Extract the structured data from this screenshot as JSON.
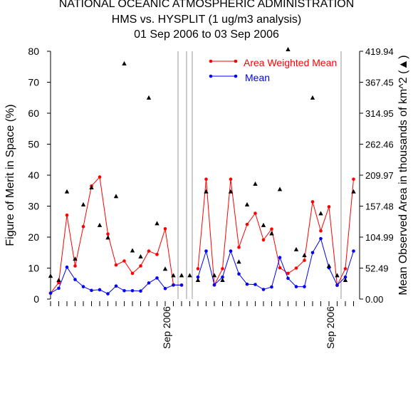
{
  "titles": {
    "line1": "NATIONAL OCEANIC ATMOSPHERIC ADMINISTRATION",
    "line2": "HMS vs. HYSPLIT (1 ug/m3 analysis)",
    "line3": "01 Sep 2006 to 03 Sep 2006"
  },
  "colors": {
    "awm": "#ff0000",
    "mean": "#0000ff",
    "area": "#000000",
    "axis": "#000000",
    "vline": "#999999"
  },
  "chart_data": {
    "type": "line",
    "ylabel_left": "Figure of Merit in Space (%)",
    "ylabel_right": "Mean Observed Area in thousands of km^2 (▲)",
    "ylim_left": [
      0,
      80
    ],
    "yticks_left": [
      "0",
      "10",
      "20",
      "30",
      "40",
      "50",
      "60",
      "70",
      "80"
    ],
    "ylim_right": [
      0,
      419.94
    ],
    "yticks_right": [
      "0.00",
      "52.49",
      "104.99",
      "157.48",
      "209.97",
      "262.46",
      "314.95",
      "367.45",
      "419.94"
    ],
    "xtick_labels": [
      "Sep 2006",
      "Sep 2006"
    ],
    "grid": false,
    "legend_position": "top-center",
    "series": [
      {
        "name": "Area Weighted Mean",
        "color": "#ff0000",
        "marker": "circle",
        "values": [
          1.9,
          5.3,
          27.1,
          10.7,
          23.4,
          36.5,
          39.4,
          21.0,
          11.0,
          12.3,
          8.3,
          10.7,
          15.5,
          14.4,
          22.7,
          4.6,
          4.5,
          null,
          9.8,
          38.7,
          4.5,
          9.8,
          38.7,
          16.7,
          24.1,
          27.7,
          19.1,
          22.6,
          10.1,
          8.3,
          10.0,
          12.5,
          31.4,
          22.0,
          29.8,
          4.4,
          9.8,
          38.7
        ]
      },
      {
        "name": "Mean",
        "color": "#0000ff",
        "marker": "circle",
        "values": [
          1.9,
          3.5,
          10.3,
          6.3,
          4.0,
          2.8,
          3.0,
          1.7,
          4.2,
          2.7,
          2.7,
          2.6,
          5.2,
          6.8,
          3.4,
          4.5,
          4.5,
          null,
          7.1,
          15.5,
          4.6,
          7.1,
          15.5,
          8.1,
          4.8,
          4.7,
          3.1,
          3.9,
          13.4,
          6.7,
          4.0,
          4.0,
          15.0,
          19.5,
          10.1,
          4.5,
          7.1,
          15.5
        ]
      },
      {
        "name": "Mean Observed Area",
        "color": "#000000",
        "marker": "triangle",
        "axis": "right",
        "values": [
          39.0,
          32.0,
          182.0,
          68.0,
          160.0,
          189.0,
          125.0,
          104.0,
          174.0,
          399.0,
          82.0,
          72.0,
          341.0,
          128.0,
          51.0,
          40.0,
          40.0,
          40.0,
          32.0,
          182.0,
          40.0,
          32.0,
          182.0,
          63.0,
          160.0,
          195.0,
          125.0,
          111.0,
          186.0,
          423.0,
          84.0,
          74.0,
          341.0,
          145.0,
          56.0,
          40.0,
          32.0,
          182.0
        ]
      }
    ]
  }
}
